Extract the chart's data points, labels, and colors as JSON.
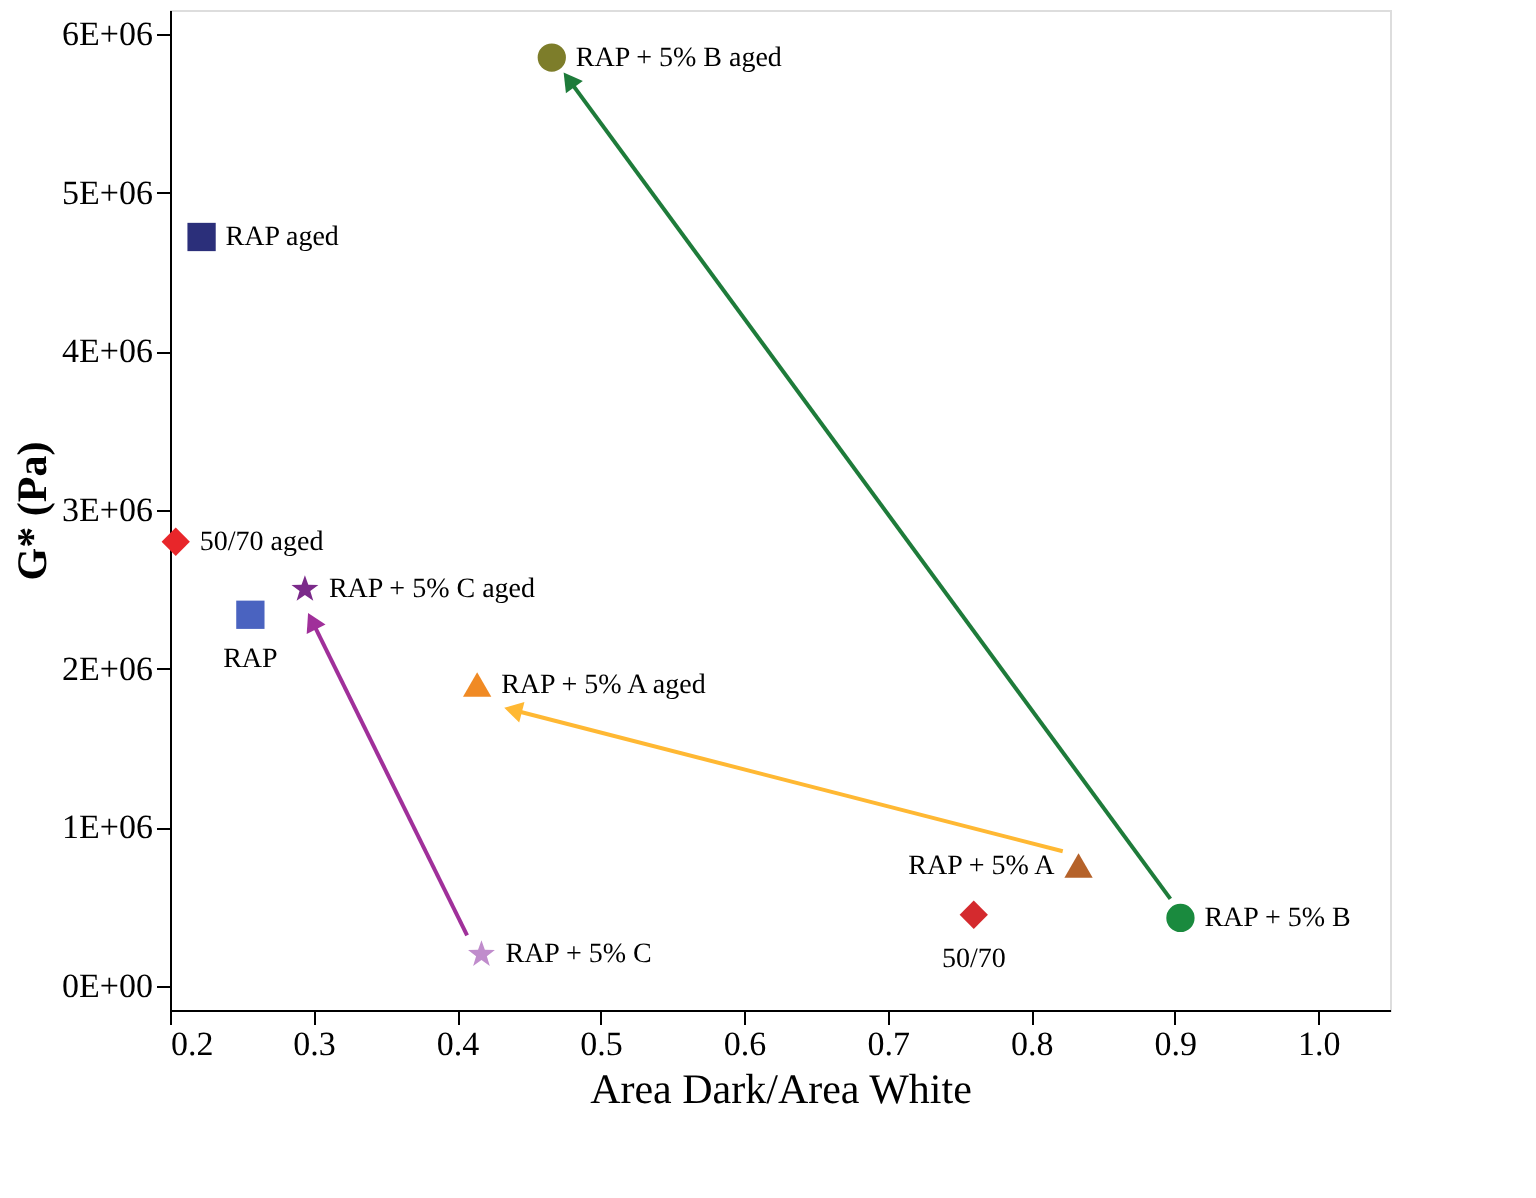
{
  "chart_data": {
    "type": "scatter",
    "xlabel": "Area Dark/Area White",
    "ylabel": "G* (Pa)",
    "xlim": [
      0.2,
      1.05
    ],
    "xticks": [
      0.2,
      0.3,
      0.4,
      0.5,
      0.6,
      0.7,
      0.8,
      0.9,
      {
        "value": 1.0,
        "label": "1.0"
      }
    ],
    "ylim": [
      -150000,
      6150000
    ],
    "yticks": [
      {
        "value": 0,
        "label": "0E+00"
      },
      {
        "value": 1000000,
        "label": "1E+06"
      },
      {
        "value": 2000000,
        "label": "2E+06"
      },
      {
        "value": 3000000,
        "label": "3E+06"
      },
      {
        "value": 4000000,
        "label": "4E+06"
      },
      {
        "value": 5000000,
        "label": "5E+06"
      },
      {
        "value": 6000000,
        "label": "6E+06"
      }
    ],
    "grid": false,
    "series": [
      {
        "name": "RAP aged",
        "color": "#2b2f7a",
        "marker": "square",
        "x": [
          0.222
        ],
        "values": [
          4720000
        ]
      },
      {
        "name": "RAP",
        "color": "#4a63c0",
        "marker": "square",
        "x": [
          0.256
        ],
        "values": [
          2340000
        ]
      },
      {
        "name": "50/70 aged",
        "color": "#e8262a",
        "marker": "diamond",
        "x": [
          0.204
        ],
        "values": [
          2800000
        ]
      },
      {
        "name": "RAP + 5% C aged",
        "color": "#7b2a8a",
        "marker": "star",
        "x": [
          0.294
        ],
        "values": [
          2500000
        ]
      },
      {
        "name": "RAP + 5% A  aged",
        "color": "#f08a24",
        "marker": "triangle",
        "x": [
          0.414
        ],
        "values": [
          1900000
        ]
      },
      {
        "name": "RAP + 5% C",
        "color": "#c08ccc",
        "marker": "star",
        "x": [
          0.417
        ],
        "values": [
          200000
        ]
      },
      {
        "name": "50/70",
        "color": "#d42a2e",
        "marker": "diamond",
        "x": [
          0.76
        ],
        "values": [
          450000
        ]
      },
      {
        "name": "RAP + 5% A",
        "color": "#b5622a",
        "marker": "triangle",
        "x": [
          0.833
        ],
        "values": [
          760000
        ]
      },
      {
        "name": "RAP + 5% B",
        "color": "#1a8a3e",
        "marker": "circle",
        "x": [
          0.904
        ],
        "values": [
          430000
        ]
      },
      {
        "name": "RAP + 5% B aged",
        "color": "#7d7d2a",
        "marker": "circle",
        "x": [
          0.466
        ],
        "values": [
          5850000
        ]
      },
      {
        "type": "line",
        "color": "#a0309a",
        "x": [
          0.407,
          0.299
        ],
        "values": [
          320000,
          2300000
        ]
      },
      {
        "type": "line",
        "color": "#ffb833",
        "x": [
          0.822,
          0.439
        ],
        "values": [
          850000,
          1740000
        ]
      },
      {
        "type": "line",
        "color": "#1e7b3a",
        "x": [
          0.897,
          0.478
        ],
        "values": [
          550000,
          5710000
        ]
      }
    ]
  }
}
